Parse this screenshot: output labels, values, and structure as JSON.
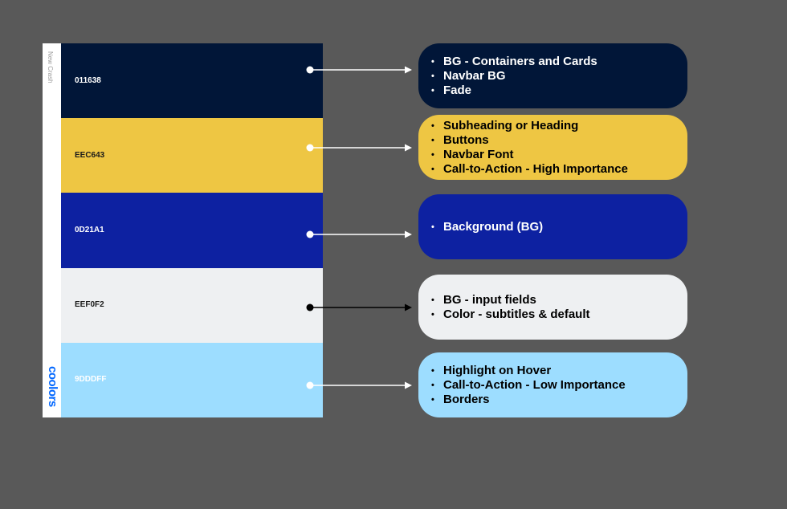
{
  "palette": {
    "caption": "New Crash",
    "brand": "coolors",
    "swatches": [
      {
        "code": "011638",
        "color": "#011638",
        "text_color": "#ffffff"
      },
      {
        "code": "EEC643",
        "color": "#EEC643",
        "text_color": "#1a1a1a"
      },
      {
        "code": "0D21A1",
        "color": "#0D21A1",
        "text_color": "#ffffff"
      },
      {
        "code": "EEF0F2",
        "color": "#EEF0F2",
        "text_color": "#1a1a1a"
      },
      {
        "code": "9DDDFF",
        "color": "#9DDDFF",
        "text_color": "#ffffff"
      }
    ]
  },
  "usages": [
    {
      "items": [
        "BG - Containers and Cards",
        "Navbar BG",
        "Fade"
      ],
      "text_color": "#ffffff",
      "arrow_color": "#ffffff"
    },
    {
      "items": [
        "Subheading or Heading",
        "Buttons",
        "Navbar Font",
        "Call-to-Action - High Importance"
      ],
      "text_color": "#000000",
      "arrow_color": "#ffffff"
    },
    {
      "items": [
        "Background (BG)"
      ],
      "text_color": "#ffffff",
      "arrow_color": "#ffffff"
    },
    {
      "items": [
        "BG - input fields",
        "Color - subtitles & default"
      ],
      "text_color": "#000000",
      "arrow_color": "#000000"
    },
    {
      "items": [
        "Highlight on Hover",
        "Call-to-Action - Low Importance",
        "Borders"
      ],
      "text_color": "#000000",
      "arrow_color": "#ffffff"
    }
  ],
  "bullet": "•"
}
